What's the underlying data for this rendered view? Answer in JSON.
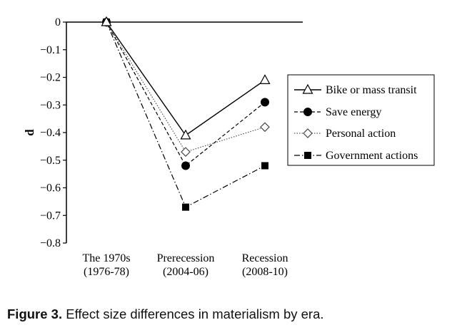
{
  "chart_data": {
    "type": "line",
    "title": "",
    "xlabel": "",
    "ylabel": "d",
    "ylim": [
      -0.8,
      0
    ],
    "yticks": [
      0,
      -0.1,
      -0.2,
      -0.3,
      -0.4,
      -0.5,
      -0.6,
      -0.7,
      -0.8
    ],
    "ytick_labels": [
      "0",
      "−0.1",
      "−0.2",
      "−0.3",
      "−0.4",
      "−0.5",
      "−0.6",
      "−0.7",
      "−0.8"
    ],
    "categories": [
      [
        "The 1970s",
        "(1976-78)"
      ],
      [
        "Prerecession",
        "(2004-06)"
      ],
      [
        "Recession",
        "(2008-10)"
      ]
    ],
    "legend_position": "right",
    "series": [
      {
        "name": "Bike or mass transit",
        "values": [
          0,
          -0.41,
          -0.21
        ],
        "marker": "triangle-open",
        "dash": "solid",
        "color": "#000000"
      },
      {
        "name": "Save energy",
        "values": [
          0,
          -0.52,
          -0.29
        ],
        "marker": "circle-filled",
        "dash": "dashed",
        "color": "#000000"
      },
      {
        "name": "Personal action",
        "values": [
          0,
          -0.47,
          -0.38
        ],
        "marker": "diamond-open",
        "dash": "dotted",
        "color": "#555555"
      },
      {
        "name": "Government actions",
        "values": [
          0,
          -0.67,
          -0.52
        ],
        "marker": "square-filled",
        "dash": "dashdot",
        "color": "#000000"
      }
    ]
  },
  "caption": {
    "label": "Figure 3.",
    "text": "Effect size differences in materialism by era."
  }
}
